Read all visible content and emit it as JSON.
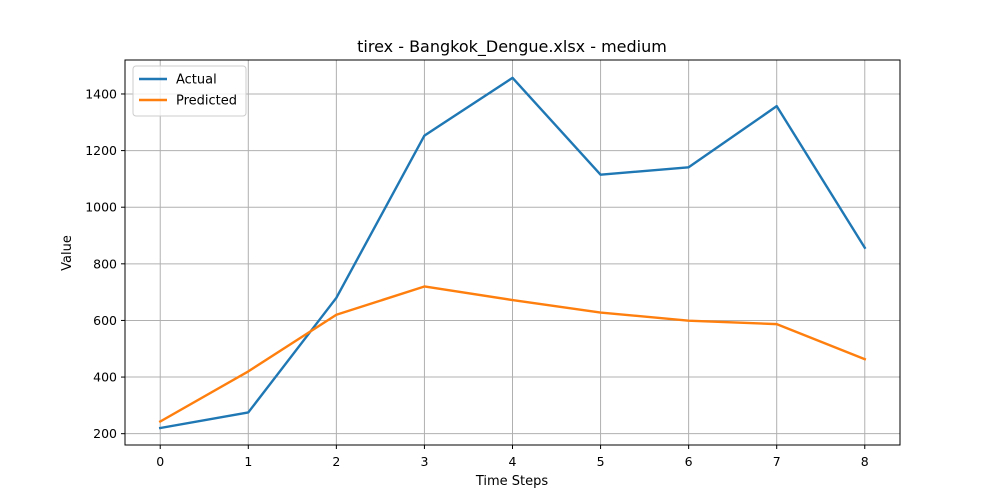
{
  "chart_data": {
    "type": "line",
    "title": "tirex - Bangkok_Dengue.xlsx - medium",
    "xlabel": "Time Steps",
    "ylabel": "Value",
    "x": [
      0,
      1,
      2,
      3,
      4,
      5,
      6,
      7,
      8
    ],
    "xlim": [
      -0.4,
      8.4
    ],
    "ylim": [
      160,
      1520
    ],
    "xticks": [
      0,
      1,
      2,
      3,
      4,
      5,
      6,
      7,
      8
    ],
    "yticks": [
      200,
      400,
      600,
      800,
      1000,
      1200,
      1400
    ],
    "grid": true,
    "legend_position": "top-left",
    "series": [
      {
        "name": "Actual",
        "color": "#1f77b4",
        "values": [
          220,
          275,
          680,
          1253,
          1457,
          1115,
          1141,
          1357,
          857
        ]
      },
      {
        "name": "Predicted",
        "color": "#ff7f0e",
        "values": [
          243,
          420,
          620,
          720,
          672,
          628,
          599,
          587,
          463
        ]
      }
    ]
  }
}
